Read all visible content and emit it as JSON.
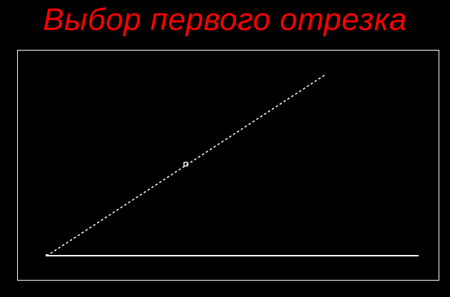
{
  "slide": {
    "title": "Выбор первого отрезка"
  },
  "colors": {
    "background": "#000000",
    "title": "#ff0000",
    "stroke": "#ffffff"
  },
  "drawing": {
    "base_segment": {
      "style": "solid",
      "state": "unselected"
    },
    "first_segment": {
      "style": "dashed",
      "state": "selected"
    },
    "pick_box": {
      "icon": "selection-box-icon"
    }
  }
}
